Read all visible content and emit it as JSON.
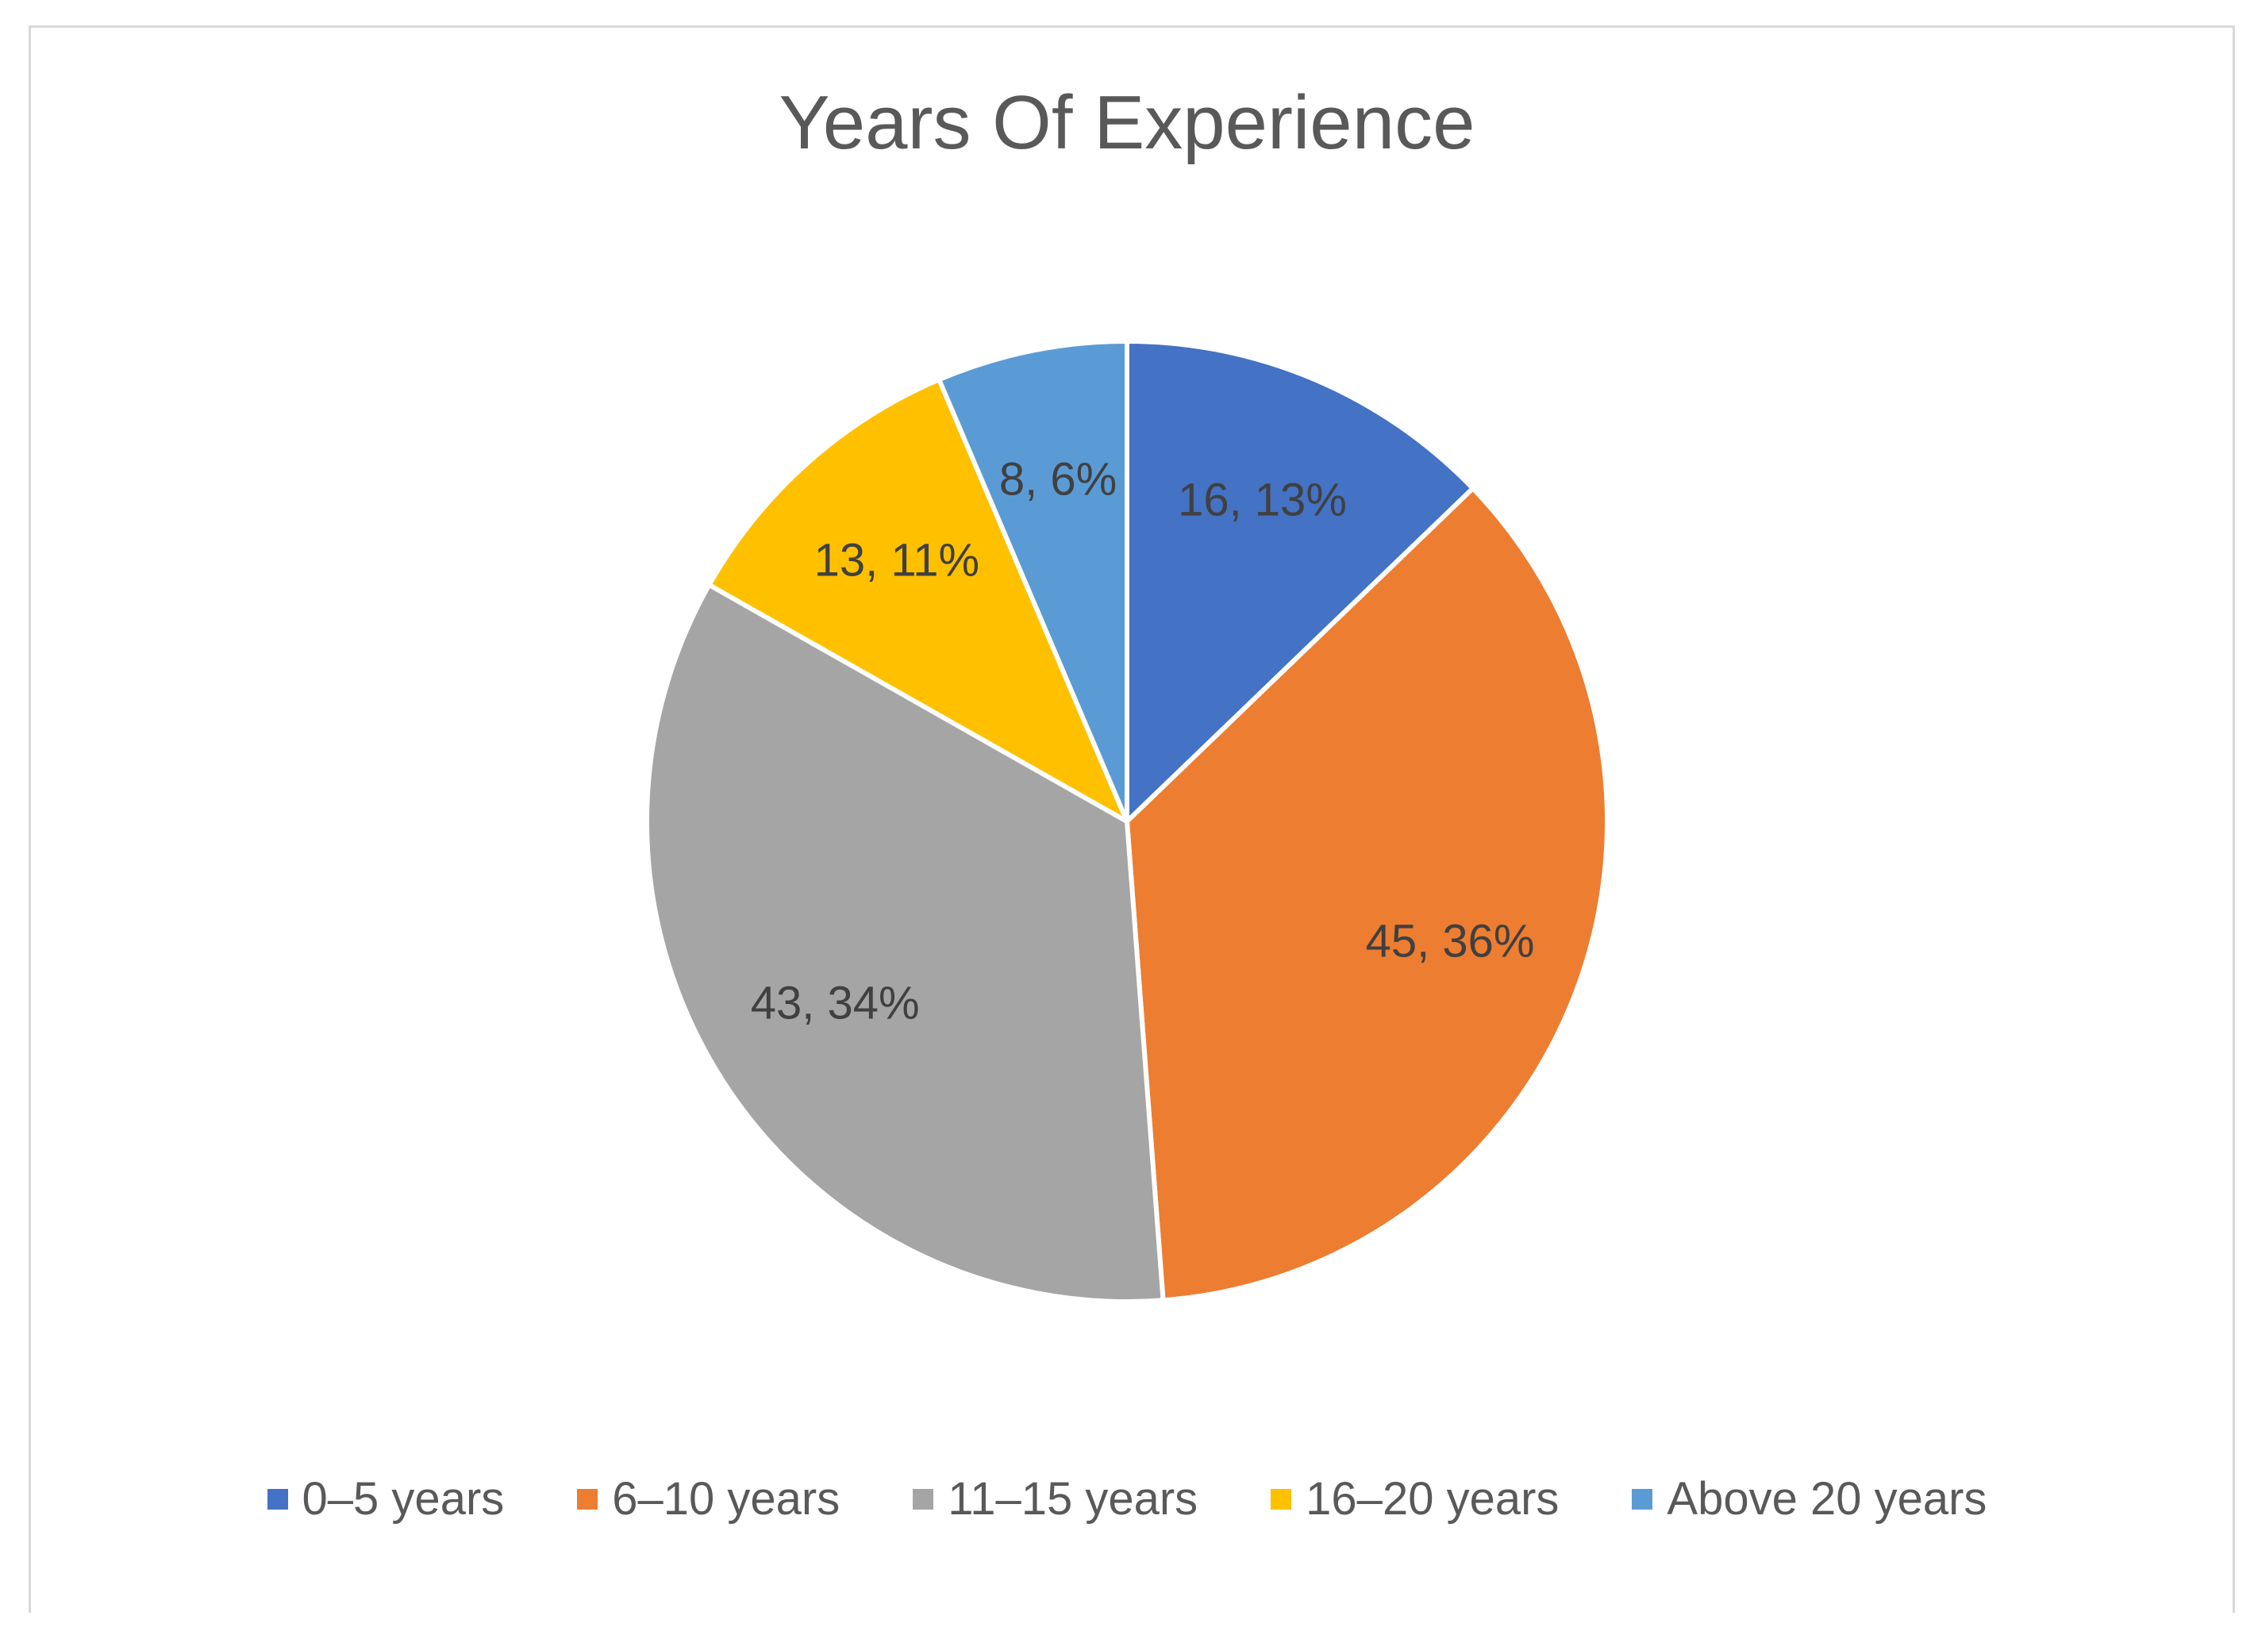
{
  "chart_data": {
    "type": "pie",
    "title": "Years Of Experience",
    "categories": [
      "0–5 years",
      "6–10 years",
      "11–15 years",
      "16–20 years",
      "Above 20 years"
    ],
    "values": [
      16,
      45,
      43,
      13,
      8
    ],
    "percentages": [
      "13%",
      "36%",
      "34%",
      "11%",
      "6%"
    ],
    "data_labels": [
      "16, 13%",
      "45, 36%",
      "43, 34%",
      "13, 11%",
      "8, 6%"
    ],
    "colors": [
      "#4472C4",
      "#ED7D31",
      "#A5A5A5",
      "#FFC000",
      "#5B9BD5"
    ],
    "legend_position": "bottom"
  }
}
